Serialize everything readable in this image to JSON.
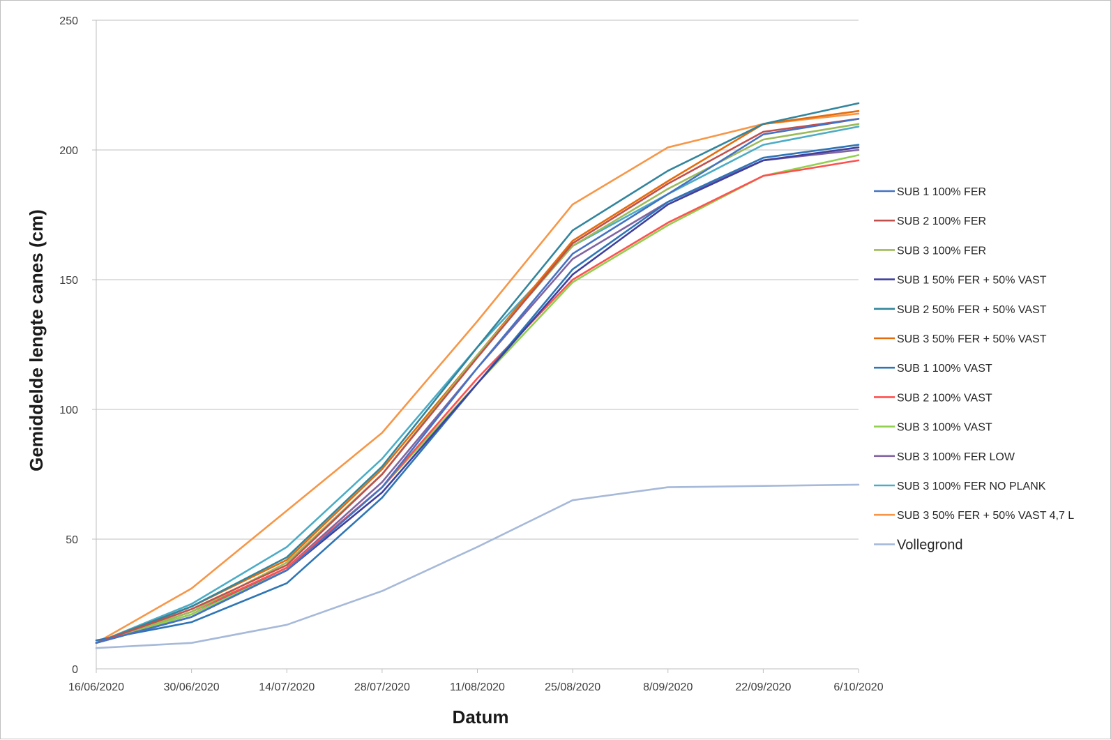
{
  "chart_data": {
    "type": "line",
    "title": "",
    "xlabel": "Datum",
    "ylabel": "Gemiddelde lengte canes (cm)",
    "ylim": [
      0,
      250
    ],
    "yticks": [
      "0",
      "50",
      "100",
      "150",
      "200",
      "250"
    ],
    "categories": [
      "16/06/2020",
      "30/06/2020",
      "14/07/2020",
      "28/07/2020",
      "11/08/2020",
      "25/08/2020",
      "8/09/2020",
      "22/09/2020",
      "6/10/2020"
    ],
    "grid": true,
    "legend_position": "right",
    "series": [
      {
        "name": "SUB 1 100% FER",
        "color": "#4472c4",
        "values": [
          10,
          20,
          38,
          70,
          116,
          160,
          183,
          206,
          212
        ]
      },
      {
        "name": "SUB 2 100% FER",
        "color": "#c0504d",
        "values": [
          10,
          23,
          40,
          75,
          120,
          164,
          187,
          207,
          212
        ]
      },
      {
        "name": "SUB 3 100% FER",
        "color": "#9bbb59",
        "values": [
          10,
          22,
          41,
          75,
          121,
          163,
          185,
          204,
          210
        ]
      },
      {
        "name": "SUB 1 50% FER + 50% VAST",
        "color": "#3f3f9f",
        "values": [
          10,
          20,
          38,
          68,
          110,
          152,
          179,
          196,
          201
        ]
      },
      {
        "name": "SUB 2 50% FER + 50% VAST",
        "color": "#31859c",
        "values": [
          10,
          24,
          43,
          78,
          124,
          169,
          192,
          210,
          218
        ]
      },
      {
        "name": "SUB 3 50% FER + 50% VAST",
        "color": "#e46c0a",
        "values": [
          10,
          24,
          42,
          77,
          121,
          165,
          188,
          210,
          215
        ]
      },
      {
        "name": "SUB 1 100% VAST",
        "color": "#2e75b6",
        "values": [
          11,
          18,
          33,
          66,
          110,
          154,
          180,
          197,
          202
        ]
      },
      {
        "name": "SUB 2 100% VAST",
        "color": "#ff5050",
        "values": [
          10,
          22,
          39,
          70,
          112,
          150,
          172,
          190,
          196
        ]
      },
      {
        "name": "SUB 3 100% VAST",
        "color": "#92d050",
        "values": [
          10,
          21,
          38,
          70,
          110,
          149,
          171,
          190,
          198
        ]
      },
      {
        "name": "SUB 3 100% FER LOW",
        "color": "#8064a2",
        "values": [
          10,
          21,
          39,
          72,
          116,
          158,
          180,
          196,
          200
        ]
      },
      {
        "name": "SUB 3 100% FER NO PLANK",
        "color": "#4bacc6",
        "values": [
          10,
          25,
          47,
          81,
          124,
          163,
          183,
          202,
          209
        ]
      },
      {
        "name": "SUB 3 50% FER + 50% VAST 4,7 L",
        "color": "#f79646",
        "values": [
          10,
          31,
          61,
          91,
          134,
          179,
          201,
          210,
          214
        ]
      },
      {
        "name": "Vollegrond",
        "color": "#a6b9d9",
        "values": [
          8,
          10,
          17,
          30,
          47,
          65,
          70,
          70.5,
          71
        ]
      }
    ]
  }
}
